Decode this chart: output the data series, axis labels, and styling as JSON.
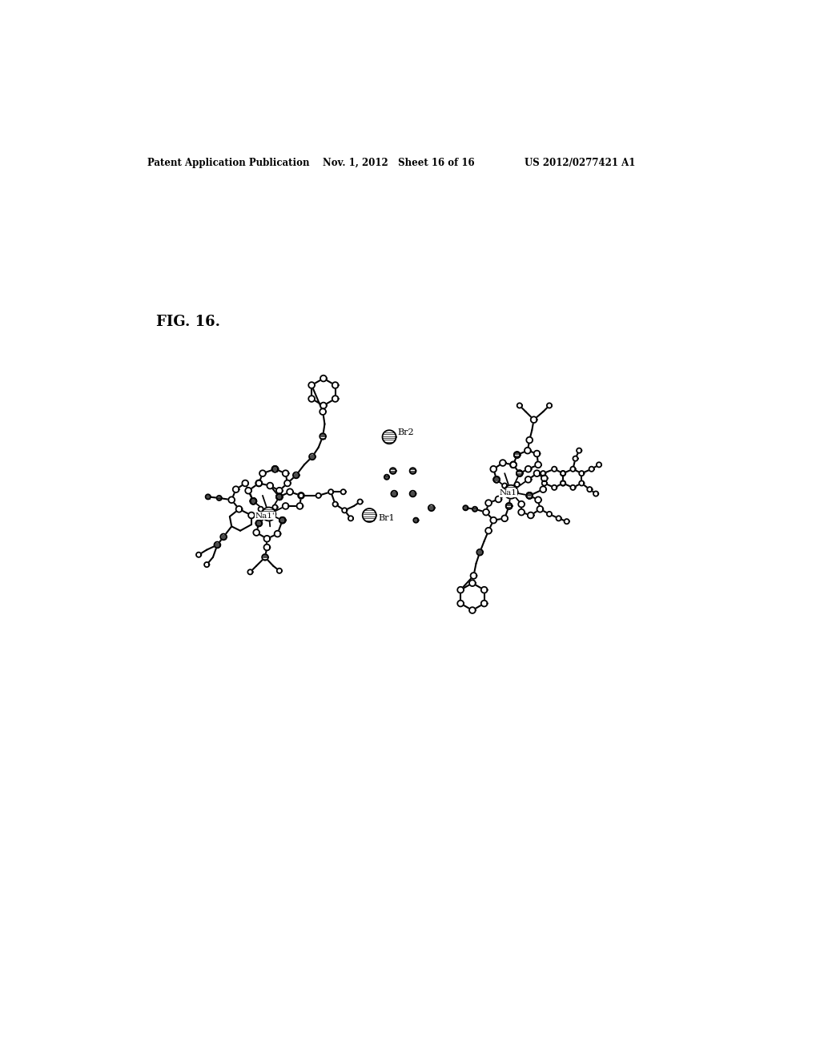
{
  "header_left": "Patent Application Publication",
  "header_mid": "Nov. 1, 2012   Sheet 16 of 16",
  "header_right": "US 2012/0277421 A1",
  "fig_label": "FIG. 16.",
  "background_color": "#ffffff",
  "line_color": "#000000"
}
